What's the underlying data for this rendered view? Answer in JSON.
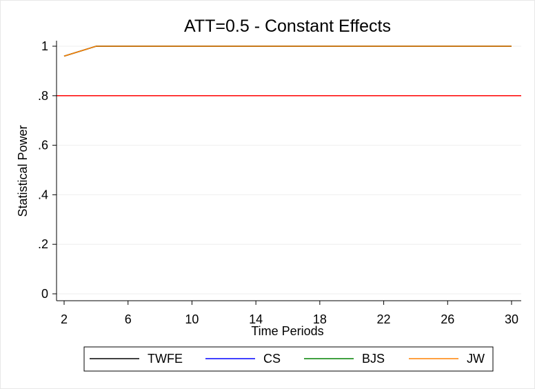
{
  "chart_data": {
    "type": "line",
    "title": "ATT=0.5 - Constant Effects",
    "xlabel": "Time Periods",
    "ylabel": "Statistical Power",
    "xlim": [
      2,
      30
    ],
    "ylim": [
      0,
      1
    ],
    "x_ticks": [
      2,
      6,
      10,
      14,
      18,
      22,
      26,
      30
    ],
    "x_tick_labels": [
      "2",
      "6",
      "10",
      "14",
      "18",
      "22",
      "26",
      "30"
    ],
    "y_ticks": [
      0,
      0.2,
      0.4,
      0.6,
      0.8,
      1
    ],
    "y_tick_labels": [
      "0",
      ".2",
      ".4",
      ".6",
      ".8",
      "1"
    ],
    "grid": true,
    "x": [
      2,
      4,
      6,
      8,
      10,
      12,
      14,
      16,
      18,
      20,
      22,
      24,
      26,
      28,
      30
    ],
    "series": [
      {
        "name": "TWFE",
        "color": "#000000",
        "values": [
          0.96,
          1,
          1,
          1,
          1,
          1,
          1,
          1,
          1,
          1,
          1,
          1,
          1,
          1,
          1
        ]
      },
      {
        "name": "CS",
        "color": "#0000ff",
        "values": [
          0.96,
          1,
          1,
          1,
          1,
          1,
          1,
          1,
          1,
          1,
          1,
          1,
          1,
          1,
          1
        ]
      },
      {
        "name": "BJS",
        "color": "#008000",
        "values": [
          0.96,
          1,
          1,
          1,
          1,
          1,
          1,
          1,
          1,
          1,
          1,
          1,
          1,
          1,
          1
        ]
      },
      {
        "name": "JW",
        "color": "#ff8000",
        "values": [
          0.96,
          1,
          1,
          1,
          1,
          1,
          1,
          1,
          1,
          1,
          1,
          1,
          1,
          1,
          1
        ]
      }
    ],
    "reference_line": {
      "y": 0.8,
      "color": "#ff0000"
    },
    "legend_position": "bottom"
  }
}
